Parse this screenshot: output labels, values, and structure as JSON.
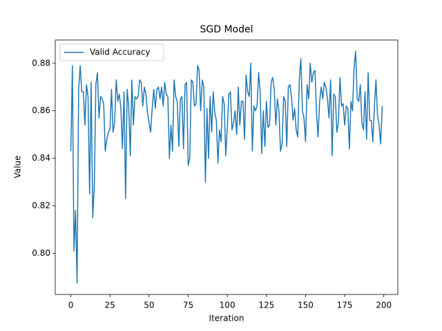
{
  "chart_data": {
    "type": "line",
    "title": "SGD Model",
    "xlabel": "Iteration",
    "ylabel": "Value",
    "x": [
      0,
      1,
      2,
      3,
      4,
      5,
      6,
      7,
      8,
      9,
      10,
      11,
      12,
      13,
      14,
      15,
      16,
      17,
      18,
      19,
      20,
      21,
      22,
      23,
      24,
      25,
      26,
      27,
      28,
      29,
      30,
      31,
      32,
      33,
      34,
      35,
      36,
      37,
      38,
      39,
      40,
      41,
      42,
      43,
      44,
      45,
      46,
      47,
      48,
      49,
      50,
      51,
      52,
      53,
      54,
      55,
      56,
      57,
      58,
      59,
      60,
      61,
      62,
      63,
      64,
      65,
      66,
      67,
      68,
      69,
      70,
      71,
      72,
      73,
      74,
      75,
      76,
      77,
      78,
      79,
      80,
      81,
      82,
      83,
      84,
      85,
      86,
      87,
      88,
      89,
      90,
      91,
      92,
      93,
      94,
      95,
      96,
      97,
      98,
      99,
      100,
      101,
      102,
      103,
      104,
      105,
      106,
      107,
      108,
      109,
      110,
      111,
      112,
      113,
      114,
      115,
      116,
      117,
      118,
      119,
      120,
      121,
      122,
      123,
      124,
      125,
      126,
      127,
      128,
      129,
      130,
      131,
      132,
      133,
      134,
      135,
      136,
      137,
      138,
      139,
      140,
      141,
      142,
      143,
      144,
      145,
      146,
      147,
      148,
      149,
      150,
      151,
      152,
      153,
      154,
      155,
      156,
      157,
      158,
      159,
      160,
      161,
      162,
      163,
      164,
      165,
      166,
      167,
      168,
      169,
      170,
      171,
      172,
      173,
      174,
      175,
      176,
      177,
      178,
      179,
      180,
      181,
      182,
      183,
      184,
      185,
      186,
      187,
      188,
      189,
      190,
      191,
      192,
      193,
      194,
      195,
      196,
      197,
      198,
      199
    ],
    "series": [
      {
        "name": "Valid Accuracy",
        "color": "#1f77b4",
        "values": [
          0.843,
          0.879,
          0.801,
          0.818,
          0.7875,
          0.869,
          0.879,
          0.868,
          0.868,
          0.854,
          0.871,
          0.866,
          0.825,
          0.872,
          0.815,
          0.828,
          0.871,
          0.876,
          0.857,
          0.866,
          0.865,
          0.863,
          0.843,
          0.848,
          0.851,
          0.852,
          0.869,
          0.851,
          0.855,
          0.873,
          0.864,
          0.867,
          0.861,
          0.844,
          0.868,
          0.823,
          0.869,
          0.862,
          0.841,
          0.873,
          0.854,
          0.866,
          0.865,
          0.866,
          0.873,
          0.872,
          0.862,
          0.87,
          0.867,
          0.859,
          0.855,
          0.851,
          0.861,
          0.869,
          0.861,
          0.869,
          0.87,
          0.865,
          0.87,
          0.862,
          0.872,
          0.867,
          0.866,
          0.84,
          0.854,
          0.843,
          0.873,
          0.866,
          0.864,
          0.845,
          0.865,
          0.866,
          0.844,
          0.871,
          0.872,
          0.837,
          0.84,
          0.873,
          0.872,
          0.862,
          0.863,
          0.879,
          0.877,
          0.86,
          0.873,
          0.87,
          0.83,
          0.861,
          0.84,
          0.866,
          0.851,
          0.868,
          0.859,
          0.856,
          0.838,
          0.852,
          0.847,
          0.866,
          0.863,
          0.841,
          0.853,
          0.867,
          0.868,
          0.852,
          0.855,
          0.86,
          0.85,
          0.87,
          0.854,
          0.864,
          0.864,
          0.848,
          0.875,
          0.868,
          0.866,
          0.88,
          0.843,
          0.862,
          0.86,
          0.862,
          0.876,
          0.868,
          0.842,
          0.86,
          0.845,
          0.864,
          0.853,
          0.854,
          0.872,
          0.874,
          0.869,
          0.854,
          0.865,
          0.86,
          0.843,
          0.846,
          0.866,
          0.864,
          0.845,
          0.87,
          0.871,
          0.866,
          0.856,
          0.861,
          0.852,
          0.849,
          0.873,
          0.882,
          0.86,
          0.857,
          0.847,
          0.871,
          0.865,
          0.88,
          0.872,
          0.876,
          0.877,
          0.859,
          0.849,
          0.864,
          0.87,
          0.865,
          0.872,
          0.87,
          0.865,
          0.857,
          0.873,
          0.841,
          0.867,
          0.866,
          0.851,
          0.855,
          0.874,
          0.862,
          0.863,
          0.854,
          0.862,
          0.861,
          0.844,
          0.864,
          0.86,
          0.878,
          0.885,
          0.865,
          0.864,
          0.871,
          0.855,
          0.852,
          0.868,
          0.848,
          0.876,
          0.856,
          0.856,
          0.847,
          0.862,
          0.873,
          0.858,
          0.854,
          0.846,
          0.862
        ]
      }
    ],
    "xlim": [
      -9.95,
      208.95
    ],
    "xticks": [
      0,
      25,
      50,
      75,
      100,
      125,
      150,
      175,
      200
    ],
    "ylim": [
      0.7827,
      0.8898
    ],
    "yticks": [
      {
        "value": 0.8,
        "label": "0.80"
      },
      0.82,
      0.84,
      0.86,
      0.88
    ],
    "legend": "upper left"
  }
}
